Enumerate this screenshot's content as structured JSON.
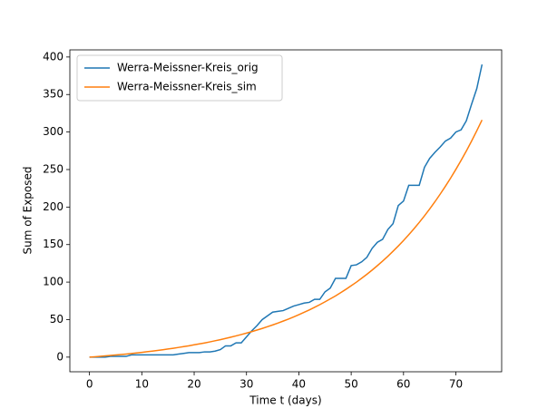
{
  "chart_data": {
    "type": "line",
    "x_label": "Time t (days)",
    "y_label": "Sum of Exposed",
    "x": [
      0,
      1,
      2,
      3,
      4,
      5,
      6,
      7,
      8,
      9,
      10,
      11,
      12,
      13,
      14,
      15,
      16,
      17,
      18,
      19,
      20,
      21,
      22,
      23,
      24,
      25,
      26,
      27,
      28,
      29,
      30,
      31,
      32,
      33,
      34,
      35,
      36,
      37,
      38,
      39,
      40,
      41,
      42,
      43,
      44,
      45,
      46,
      47,
      48,
      49,
      50,
      51,
      52,
      53,
      54,
      55,
      56,
      57,
      58,
      59,
      60,
      61,
      62,
      63,
      64,
      65,
      66,
      67,
      68,
      69,
      70,
      71,
      72,
      73,
      74,
      75
    ],
    "series": [
      {
        "name": "Werra-Meissner-Kreis_orig",
        "color": "#1f77b4",
        "values": [
          0,
          0,
          0,
          0,
          1,
          1,
          1,
          1,
          3,
          3,
          3,
          3,
          3,
          3,
          3,
          3,
          3,
          4,
          5,
          6,
          6,
          6,
          7,
          7,
          8,
          10,
          15,
          15,
          19,
          19,
          27,
          35,
          42,
          50,
          55,
          60,
          61,
          62,
          65,
          68,
          70,
          72,
          73,
          77,
          77,
          87,
          92,
          105,
          105,
          105,
          122,
          123,
          127,
          133,
          145,
          153,
          157,
          170,
          178,
          202,
          208,
          229,
          229,
          229,
          253,
          265,
          273,
          280,
          288,
          292,
          300,
          303,
          315,
          337,
          358,
          390
        ]
      },
      {
        "name": "Werra-Meissner-Kreis_sim",
        "color": "#ff7f0e",
        "values": [
          0,
          0.5,
          1.1,
          1.6,
          2.2,
          2.8,
          3.5,
          4.1,
          4.8,
          5.6,
          6.4,
          7.2,
          8.0,
          8.9,
          9.8,
          10.8,
          11.8,
          12.9,
          14.0,
          15.1,
          16.4,
          17.6,
          18.9,
          20.3,
          21.8,
          23.3,
          24.9,
          26.6,
          28.3,
          30.1,
          32.0,
          34.0,
          36.1,
          38.2,
          40.5,
          42.9,
          45.4,
          48.0,
          50.7,
          53.6,
          56.6,
          59.7,
          62.9,
          66.4,
          69.9,
          73.7,
          77.6,
          81.6,
          85.9,
          90.4,
          95.1,
          99.9,
          105.1,
          110.4,
          116.0,
          121.9,
          128.0,
          134.4,
          141.1,
          148.1,
          155.4,
          163.1,
          171.1,
          179.5,
          188.3,
          197.5,
          207.1,
          217.2,
          227.7,
          238.7,
          250.2,
          262.2,
          274.7,
          287.9,
          301.7,
          316.1
        ]
      }
    ],
    "xlim": [
      -3.75,
      78.75
    ],
    "ylim": [
      -19.5,
      409.5
    ],
    "xticks": [
      0,
      10,
      20,
      30,
      40,
      50,
      60,
      70
    ],
    "yticks": [
      0,
      50,
      100,
      150,
      200,
      250,
      300,
      350,
      400
    ],
    "legend": "upper left"
  }
}
